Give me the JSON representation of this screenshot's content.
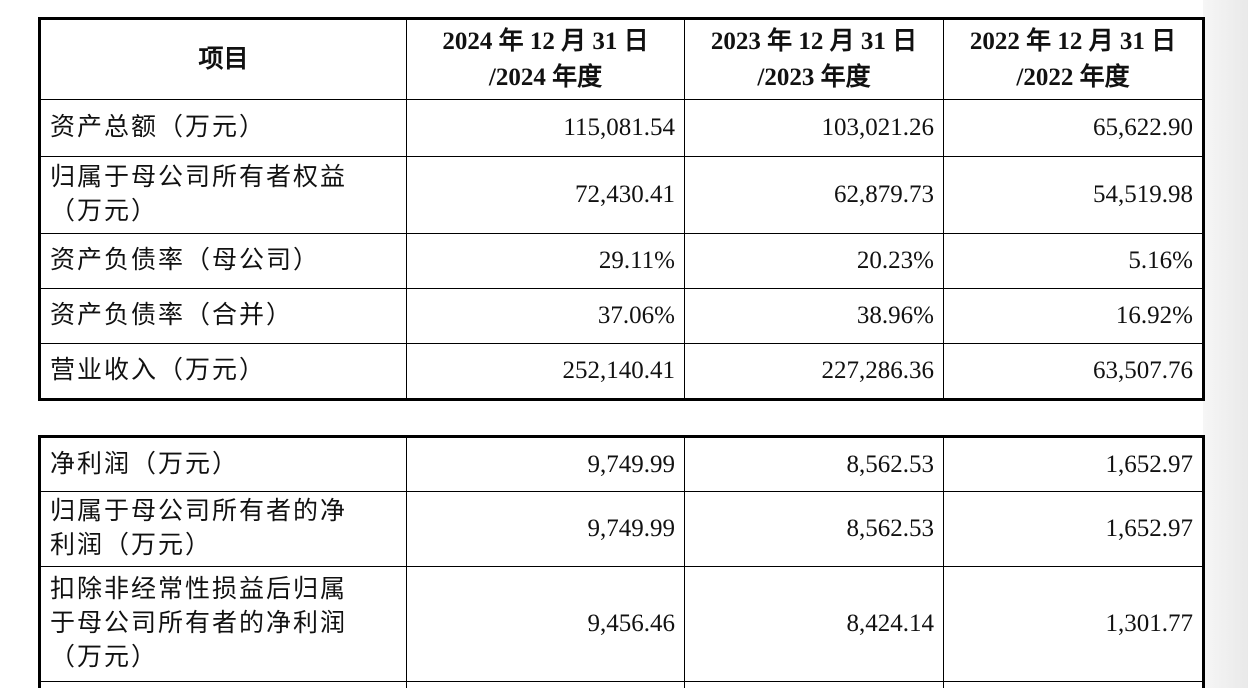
{
  "tables": [
    {
      "header": [
        [
          "项目"
        ],
        [
          "2024 年 12 月 31 日",
          "/2024 年度"
        ],
        [
          "2023 年 12 月 31 日",
          "/2023 年度"
        ],
        [
          "2022 年 12 月 31 日",
          "/2022 年度"
        ]
      ],
      "rows": [
        [
          [
            "资产总额（万元）"
          ],
          "115,081.54",
          "103,021.26",
          "65,622.90"
        ],
        [
          [
            "归属于母公司所有者权益",
            "（万元）"
          ],
          "72,430.41",
          "62,879.73",
          "54,519.98"
        ],
        [
          [
            "资产负债率（母公司）"
          ],
          "29.11%",
          "20.23%",
          "5.16%"
        ],
        [
          [
            "资产负债率（合并）"
          ],
          "37.06%",
          "38.96%",
          "16.92%"
        ],
        [
          [
            "营业收入（万元）"
          ],
          "252,140.41",
          "227,286.36",
          "63,507.76"
        ]
      ]
    },
    {
      "rows": [
        [
          [
            "净利润（万元）"
          ],
          "9,749.99",
          "8,562.53",
          "1,652.97"
        ],
        [
          [
            "归属于母公司所有者的净",
            "利润（万元）"
          ],
          "9,749.99",
          "8,562.53",
          "1,652.97"
        ],
        [
          [
            "扣除非经常性损益后归属",
            "于母公司所有者的净利润",
            "（万元）"
          ],
          "9,456.46",
          "8,424.14",
          "1,301.77"
        ]
      ]
    }
  ]
}
